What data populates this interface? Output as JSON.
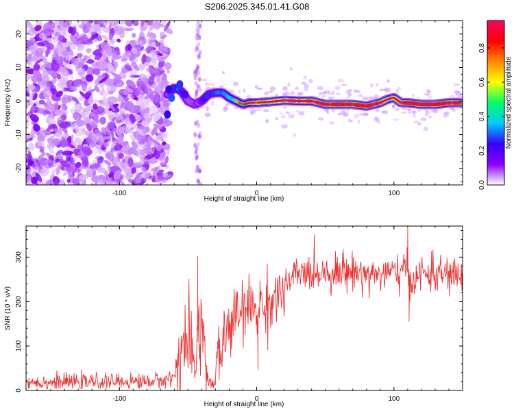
{
  "title": "S206.2025.345.01.41.G08",
  "chart_data": [
    {
      "type": "heatmap",
      "name": "spectrogram",
      "xlabel": "Height of straight line (km)",
      "ylabel": "Frequency (Hz)",
      "xlim": [
        -168,
        150
      ],
      "ylim": [
        -25,
        24
      ],
      "xticks": [
        -100,
        0,
        100
      ],
      "yticks": [
        -20,
        -10,
        0,
        10,
        20
      ],
      "colorbar": {
        "label": "Normalized spectral amplitude",
        "range": [
          0,
          0.96
        ],
        "ticks": [
          "0.0",
          "0.2",
          "0.4",
          "0.6",
          "0.8"
        ],
        "tick_values": [
          0,
          0.2,
          0.4,
          0.6,
          0.8
        ],
        "colors": [
          "#ffffff",
          "#8800ff",
          "#3300ff",
          "#00ccff",
          "#00ff66",
          "#ffff00",
          "#ff8800",
          "#ff0000",
          "#ff0066"
        ]
      },
      "noise_region_x": [
        -168,
        -68
      ],
      "signal_track": {
        "x": [
          -65,
          -60,
          -55,
          -50,
          -45,
          -40,
          -35,
          -30,
          -25,
          -20,
          -15,
          -10,
          -5,
          0,
          10,
          20,
          30,
          40,
          50,
          60,
          70,
          80,
          90,
          95,
          100,
          105,
          110,
          120,
          130,
          140,
          148
        ],
        "freq": [
          2,
          4,
          3,
          0,
          -1,
          0,
          2,
          2.5,
          2.5,
          1,
          0,
          -1,
          -0.5,
          -0.5,
          -0.2,
          0.2,
          0,
          0,
          -1,
          -1,
          -1,
          -1.5,
          -0.5,
          0.5,
          1,
          -0.5,
          -0.5,
          -1,
          -1,
          -0.5,
          -0.5
        ],
        "amp": [
          0.2,
          0.3,
          0.3,
          0.15,
          0.2,
          0.25,
          0.3,
          0.3,
          0.35,
          0.4,
          0.45,
          0.5,
          0.55,
          0.6,
          0.7,
          0.75,
          0.75,
          0.8,
          0.85,
          0.9,
          0.9,
          0.88,
          0.8,
          0.6,
          0.6,
          0.85,
          0.9,
          0.95,
          0.95,
          0.9,
          0.9
        ]
      }
    },
    {
      "type": "line",
      "name": "snr",
      "xlabel": "Height of straight line (km)",
      "ylabel": "SNR (10 * v/v)",
      "xlim": [
        -168,
        150
      ],
      "ylim": [
        0,
        370
      ],
      "xticks": [
        -100,
        0,
        100
      ],
      "yticks": [
        0,
        100,
        200,
        300
      ],
      "color": "#ee3333",
      "series": [
        {
          "name": "SNR",
          "x": [
            -168,
            -150,
            -120,
            -90,
            -70,
            -60,
            -56,
            -50,
            -45,
            -42,
            -40,
            -35,
            -31,
            -28,
            -25,
            -20,
            -15,
            -10,
            -5,
            0,
            5,
            10,
            15,
            20,
            25,
            30,
            40,
            50,
            60,
            70,
            80,
            90,
            100,
            108,
            110,
            112,
            120,
            130,
            140,
            150
          ],
          "y": [
            20,
            18,
            19,
            20,
            22,
            30,
            90,
            110,
            30,
            200,
            130,
            20,
            10,
            75,
            110,
            140,
            165,
            175,
            185,
            185,
            190,
            200,
            215,
            220,
            250,
            262,
            265,
            268,
            265,
            268,
            262,
            262,
            265,
            268,
            270,
            245,
            262,
            262,
            260,
            258
          ],
          "spikes": [
            {
              "x": -43,
              "y": 303
            },
            {
              "x": 110,
              "y": 365
            },
            {
              "x": 111,
              "y": 155
            },
            {
              "x": 1,
              "y": 45
            },
            {
              "x": 63,
              "y": 318
            }
          ]
        }
      ]
    }
  ]
}
